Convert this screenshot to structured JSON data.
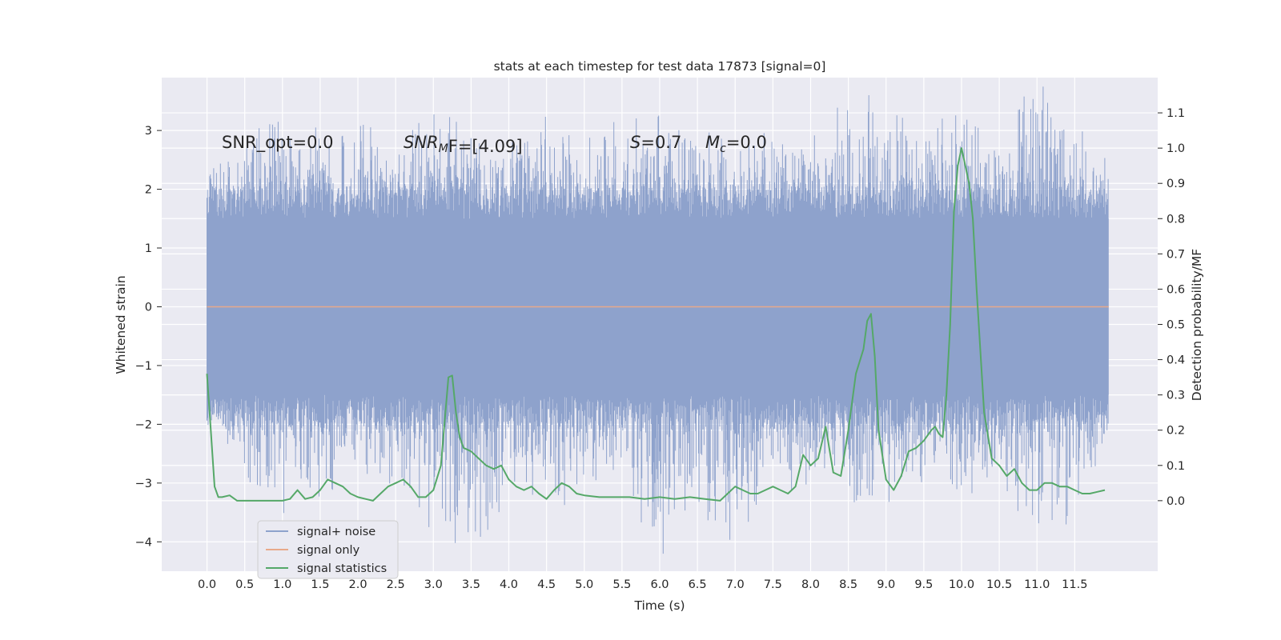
{
  "chart_data": {
    "type": "line",
    "title": "stats at each timestep for test data 17873 [signal=0]",
    "xlabel": "Time (s)",
    "ylabel": "Whitened strain",
    "y2label": "Detection probability/MF",
    "xlim": [
      -0.6,
      12.6
    ],
    "ylim": [
      -4.5,
      3.9
    ],
    "y2lim": [
      -0.2,
      1.2
    ],
    "x_ticks": [
      0.0,
      0.5,
      1.0,
      1.5,
      2.0,
      2.5,
      3.0,
      3.5,
      4.0,
      4.5,
      5.0,
      5.5,
      6.0,
      6.5,
      7.0,
      7.5,
      8.0,
      8.5,
      9.0,
      9.5,
      10.0,
      10.5,
      11.0,
      11.5
    ],
    "x_tick_labels": [
      "0.0",
      "0.5",
      "1.0",
      "1.5",
      "2.0",
      "2.5",
      "3.0",
      "3.5",
      "4.0",
      "4.5",
      "5.0",
      "5.5",
      "6.0",
      "6.5",
      "7.0",
      "7.5",
      "8.0",
      "8.5",
      "9.0",
      "9.5",
      "10.0",
      "10.5",
      "11.0",
      "11.5"
    ],
    "y_ticks": [
      -4,
      -3,
      -2,
      -1,
      0,
      1,
      2,
      3
    ],
    "y_tick_labels": [
      "−4",
      "−3",
      "−2",
      "−1",
      "0",
      "1",
      "2",
      "3"
    ],
    "y2_ticks": [
      0.0,
      0.1,
      0.2,
      0.3,
      0.4,
      0.5,
      0.6,
      0.7,
      0.8,
      0.9,
      1.0,
      1.1
    ],
    "y2_tick_labels": [
      "0.0",
      "0.1",
      "0.2",
      "0.3",
      "0.4",
      "0.5",
      "0.6",
      "0.7",
      "0.8",
      "0.9",
      "1.0",
      "1.1"
    ],
    "grid": true,
    "legend_position": "bottom-left",
    "annotations": {
      "snr_opt": "SNR_opt=0.0",
      "snr_mf_main": "SNR",
      "snr_mf_sub": "M",
      "snr_mf_rest": "F=[4.09]",
      "s_main": "S",
      "s_rest": "=0.7",
      "mc_main": "M",
      "mc_sub": "c",
      "mc_rest": "=0.0"
    },
    "noise_envelope": {
      "x": [
        0.0,
        0.5,
        1.0,
        1.5,
        2.0,
        2.5,
        3.0,
        3.5,
        4.0,
        4.5,
        5.0,
        5.5,
        6.0,
        6.5,
        7.0,
        7.5,
        8.0,
        8.5,
        9.0,
        9.5,
        10.0,
        10.5,
        11.0,
        11.5,
        11.95
      ],
      "upper": [
        2.0,
        2.4,
        3.3,
        2.6,
        2.8,
        2.3,
        3.5,
        2.5,
        2.6,
        2.7,
        2.6,
        2.6,
        2.9,
        2.8,
        2.7,
        2.5,
        2.5,
        3.1,
        3.5,
        2.5,
        2.9,
        2.6,
        3.4,
        3.0,
        2.0
      ],
      "lower": [
        -1.5,
        -2.7,
        -3.1,
        -3.0,
        -2.4,
        -3.2,
        -3.3,
        -3.9,
        -2.7,
        -3.1,
        -2.7,
        -2.5,
        -4.1,
        -3.3,
        -3.6,
        -2.8,
        -2.6,
        -3.0,
        -3.1,
        -2.5,
        -2.8,
        -2.8,
        -3.4,
        -3.6,
        -1.7
      ],
      "body_upper": 1.5,
      "body_lower": -1.5
    },
    "series": [
      {
        "name": "signal+ noise",
        "color": "#8ea2cc",
        "note_values": "dense noise trace between noise_envelope.lower and noise_envelope.upper"
      },
      {
        "name": "signal only",
        "color": "#e8a98a",
        "x": [
          0.0,
          11.95
        ],
        "y": [
          0.0,
          0.0
        ]
      },
      {
        "name": "signal statistics",
        "color": "#55a868",
        "axis": "right",
        "x": [
          0.0,
          0.05,
          0.1,
          0.15,
          0.2,
          0.3,
          0.4,
          0.5,
          0.6,
          0.7,
          0.8,
          0.9,
          1.0,
          1.1,
          1.2,
          1.3,
          1.4,
          1.5,
          1.6,
          1.7,
          1.8,
          1.9,
          2.0,
          2.1,
          2.2,
          2.3,
          2.4,
          2.5,
          2.6,
          2.7,
          2.8,
          2.9,
          3.0,
          3.1,
          3.2,
          3.25,
          3.3,
          3.35,
          3.4,
          3.5,
          3.6,
          3.7,
          3.8,
          3.9,
          4.0,
          4.1,
          4.2,
          4.3,
          4.4,
          4.5,
          4.6,
          4.7,
          4.8,
          4.9,
          5.0,
          5.2,
          5.4,
          5.6,
          5.8,
          6.0,
          6.2,
          6.4,
          6.6,
          6.8,
          7.0,
          7.1,
          7.2,
          7.3,
          7.4,
          7.5,
          7.6,
          7.7,
          7.8,
          7.9,
          8.0,
          8.1,
          8.2,
          8.3,
          8.4,
          8.5,
          8.6,
          8.7,
          8.75,
          8.8,
          8.85,
          8.9,
          9.0,
          9.1,
          9.2,
          9.3,
          9.4,
          9.5,
          9.6,
          9.65,
          9.7,
          9.75,
          9.8,
          9.85,
          9.9,
          9.95,
          10.0,
          10.05,
          10.1,
          10.15,
          10.2,
          10.3,
          10.4,
          10.5,
          10.6,
          10.7,
          10.8,
          10.9,
          11.0,
          11.1,
          11.2,
          11.3,
          11.4,
          11.5,
          11.6,
          11.7,
          11.8,
          11.9
        ],
        "y": [
          0.36,
          0.2,
          0.04,
          0.01,
          0.01,
          0.015,
          0.0,
          0.0,
          0.0,
          0.0,
          0.0,
          0.0,
          0.0,
          0.005,
          0.03,
          0.005,
          0.01,
          0.03,
          0.06,
          0.05,
          0.04,
          0.02,
          0.01,
          0.005,
          0.0,
          0.02,
          0.04,
          0.05,
          0.06,
          0.04,
          0.01,
          0.01,
          0.03,
          0.1,
          0.35,
          0.355,
          0.25,
          0.18,
          0.15,
          0.14,
          0.12,
          0.1,
          0.09,
          0.1,
          0.06,
          0.04,
          0.03,
          0.04,
          0.02,
          0.005,
          0.03,
          0.05,
          0.04,
          0.02,
          0.015,
          0.01,
          0.01,
          0.01,
          0.005,
          0.01,
          0.005,
          0.01,
          0.005,
          0.0,
          0.04,
          0.03,
          0.02,
          0.02,
          0.03,
          0.04,
          0.03,
          0.02,
          0.04,
          0.13,
          0.1,
          0.12,
          0.21,
          0.08,
          0.07,
          0.2,
          0.36,
          0.43,
          0.51,
          0.53,
          0.41,
          0.2,
          0.06,
          0.03,
          0.07,
          0.14,
          0.15,
          0.17,
          0.2,
          0.21,
          0.19,
          0.18,
          0.3,
          0.5,
          0.82,
          0.95,
          1.0,
          0.95,
          0.9,
          0.8,
          0.6,
          0.25,
          0.12,
          0.1,
          0.07,
          0.09,
          0.05,
          0.03,
          0.03,
          0.05,
          0.05,
          0.04,
          0.04,
          0.03,
          0.02,
          0.02,
          0.025,
          0.03
        ]
      }
    ]
  }
}
